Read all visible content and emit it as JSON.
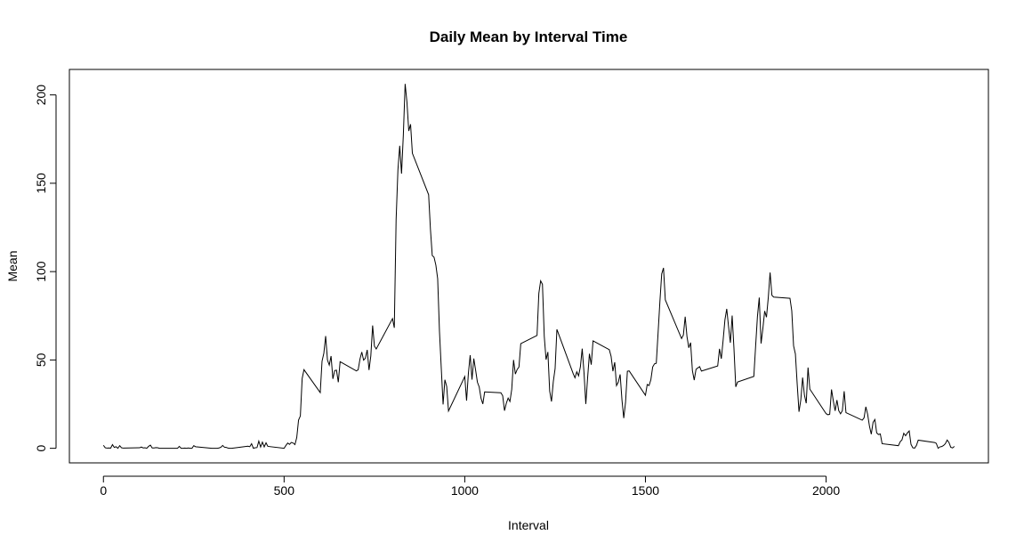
{
  "chart_data": {
    "type": "line",
    "title": "Daily Mean by Interval Time",
    "x_label": "Interval",
    "y_label": "Mean",
    "x": [
      0,
      5,
      10,
      15,
      20,
      25,
      30,
      35,
      40,
      45,
      50,
      55,
      100,
      105,
      110,
      115,
      120,
      125,
      130,
      135,
      140,
      145,
      150,
      155,
      200,
      205,
      210,
      215,
      220,
      225,
      230,
      235,
      240,
      245,
      250,
      255,
      300,
      305,
      310,
      315,
      320,
      325,
      330,
      335,
      340,
      345,
      350,
      355,
      400,
      405,
      410,
      415,
      420,
      425,
      430,
      435,
      440,
      445,
      450,
      455,
      500,
      505,
      510,
      515,
      520,
      525,
      530,
      535,
      540,
      545,
      550,
      555,
      600,
      605,
      610,
      615,
      620,
      625,
      630,
      635,
      640,
      645,
      650,
      655,
      700,
      705,
      710,
      715,
      720,
      725,
      730,
      735,
      740,
      745,
      750,
      755,
      800,
      805,
      810,
      815,
      820,
      825,
      830,
      835,
      840,
      845,
      850,
      855,
      900,
      905,
      910,
      915,
      920,
      925,
      930,
      935,
      940,
      945,
      950,
      955,
      1000,
      1005,
      1010,
      1015,
      1020,
      1025,
      1030,
      1035,
      1040,
      1045,
      1050,
      1055,
      1100,
      1105,
      1110,
      1115,
      1120,
      1125,
      1130,
      1135,
      1140,
      1145,
      1150,
      1155,
      1200,
      1205,
      1210,
      1215,
      1220,
      1225,
      1230,
      1235,
      1240,
      1245,
      1250,
      1255,
      1300,
      1305,
      1310,
      1315,
      1320,
      1325,
      1330,
      1335,
      1340,
      1345,
      1350,
      1355,
      1400,
      1405,
      1410,
      1415,
      1420,
      1425,
      1430,
      1435,
      1440,
      1445,
      1450,
      1455,
      1500,
      1505,
      1510,
      1515,
      1520,
      1525,
      1530,
      1535,
      1540,
      1545,
      1550,
      1555,
      1600,
      1605,
      1610,
      1615,
      1620,
      1625,
      1630,
      1635,
      1640,
      1645,
      1650,
      1655,
      1700,
      1705,
      1710,
      1715,
      1720,
      1725,
      1730,
      1735,
      1740,
      1745,
      1750,
      1755,
      1800,
      1805,
      1810,
      1815,
      1820,
      1825,
      1830,
      1835,
      1840,
      1845,
      1850,
      1855,
      1900,
      1905,
      1910,
      1915,
      1920,
      1925,
      1930,
      1935,
      1940,
      1945,
      1950,
      1955,
      2000,
      2005,
      2010,
      2015,
      2020,
      2025,
      2030,
      2035,
      2040,
      2045,
      2050,
      2055,
      2100,
      2105,
      2110,
      2115,
      2120,
      2125,
      2130,
      2135,
      2140,
      2145,
      2150,
      2155,
      2200,
      2205,
      2210,
      2215,
      2220,
      2225,
      2230,
      2235,
      2240,
      2245,
      2250,
      2255,
      2300,
      2305,
      2310,
      2315,
      2320,
      2325,
      2330,
      2335,
      2340,
      2345,
      2350,
      2355
    ],
    "values": [
      1.7,
      0.3,
      0.1,
      0.2,
      0.1,
      2.1,
      0.5,
      0.9,
      0,
      1.5,
      0.3,
      0.1,
      0.3,
      0.7,
      0.2,
      0.3,
      0,
      1.1,
      1.8,
      0.2,
      0.2,
      0.4,
      0.3,
      0,
      0,
      0,
      1.1,
      0,
      0,
      0.1,
      0,
      0.2,
      0,
      0,
      1.5,
      0.9,
      0,
      0,
      0,
      0,
      0.2,
      0.6,
      1.6,
      0.6,
      0.5,
      0.1,
      0,
      0,
      1.2,
      0.9,
      2.6,
      0,
      0.3,
      0.4,
      4.1,
      0.7,
      3.5,
      0.8,
      3.1,
      1.1,
      0,
      1.6,
      3,
      2.2,
      3.3,
      3,
      2.1,
      6.1,
      16,
      18.3,
      39.5,
      44.5,
      31.5,
      49.3,
      53.8,
      63.5,
      50,
      47.1,
      52.2,
      39.3,
      44,
      44.2,
      37.4,
      49,
      43.8,
      44.4,
      50.5,
      54.5,
      49.9,
      51,
      55.7,
      44.3,
      52.3,
      69.5,
      57.8,
      56.2,
      73.4,
      68.2,
      129.4,
      157.5,
      171.2,
      155.4,
      177.3,
      206.2,
      195.9,
      179.6,
      183.4,
      167,
      143.5,
      124,
      109.1,
      108.1,
      103.7,
      96,
      66.2,
      45.2,
      24.8,
      38.8,
      35,
      21.1,
      40.6,
      27,
      42.4,
      52.7,
      38.9,
      50.8,
      44.3,
      37.4,
      34.7,
      28.3,
      25.1,
      31.9,
      31.4,
      29.7,
      21.3,
      25.5,
      28.4,
      26.5,
      33.4,
      50,
      42,
      44.6,
      46,
      59.2,
      63.9,
      87.7,
      94.8,
      92.8,
      63.4,
      50.2,
      54.5,
      32.4,
      26.5,
      37.7,
      45.1,
      67.3,
      42.3,
      39.9,
      43.3,
      41,
      46.2,
      56.4,
      42.8,
      25.1,
      40,
      53.5,
      47.3,
      60.8,
      55.8,
      52,
      43.6,
      48.7,
      35.5,
      37.5,
      41.8,
      27.5,
      17.1,
      26.1,
      43.6,
      43.8,
      30,
      36.1,
      35.5,
      38.8,
      46,
      47.8,
      48.1,
      65.3,
      82.9,
      98.7,
      102.1,
      84,
      62.1,
      64.1,
      74.5,
      63.2,
      56.9,
      59.8,
      43.9,
      38.6,
      44.7,
      45.5,
      46.2,
      43.7,
      46.6,
      56.3,
      50.7,
      61.2,
      72.7,
      78.9,
      68.9,
      59.7,
      75.1,
      56.5,
      34.8,
      37.5,
      40.7,
      58,
      74.7,
      85.3,
      59.3,
      67.8,
      77.7,
      74.2,
      85.3,
      99.5,
      86.6,
      85.6,
      84.9,
      77.8,
      58,
      53.4,
      36.3,
      20.7,
      27.4,
      40,
      30.2,
      25.5,
      45.7,
      33.5,
      19.6,
      19,
      19.3,
      33.3,
      26.8,
      21.2,
      27.3,
      21.3,
      19.5,
      21.3,
      32.3,
      20.2,
      15.9,
      17.2,
      23.5,
      19.2,
      12.5,
      8,
      14.7,
      16.3,
      8.7,
      7.8,
      8.1,
      2.6,
      1.5,
      3.7,
      4.8,
      8.5,
      7.1,
      8.7,
      9.8,
      2.2,
      0.3,
      0.1,
      1.6,
      4.6,
      3.3,
      2.8,
      0,
      0.8,
      1,
      1.6,
      2.6,
      4.7,
      3.3,
      0.6,
      0.2,
      1.1
    ],
    "color": "#000000",
    "xlim": [
      -94.2,
      2449.2
    ],
    "ylim": [
      -8.25,
      214.42
    ],
    "xticks": [
      0,
      500,
      1000,
      1500,
      2000
    ],
    "yticks": [
      0,
      50,
      100,
      150,
      200
    ]
  }
}
